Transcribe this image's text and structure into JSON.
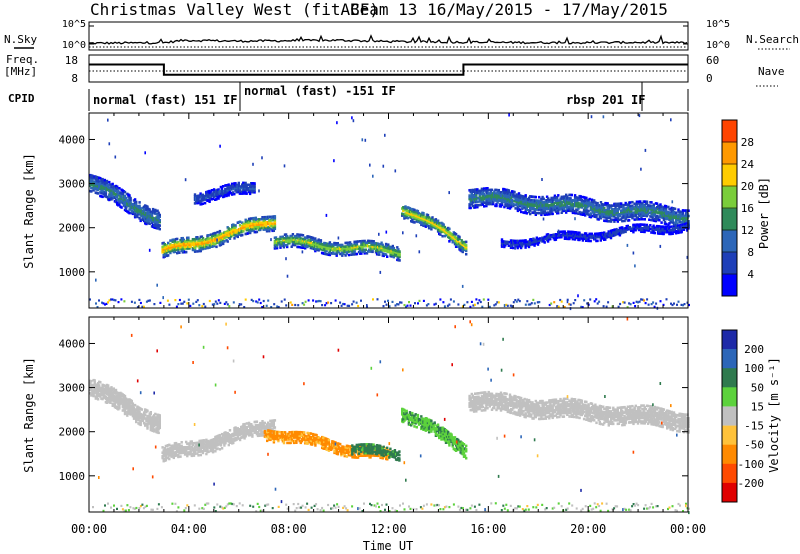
{
  "title": {
    "station": "Christmas Valley West (fitACF)",
    "beam": "Beam 13 16/May/2015 - 17/May/2015"
  },
  "labels": {
    "nsky": "N.Sky",
    "nsearch": "N.Search",
    "freq_line1": "Freq.",
    "freq_line2": "[MHz]",
    "nave": "Nave",
    "cpid": "CPID",
    "xlabel": "Time UT",
    "ylabel": "Slant Range [km]",
    "power_label": "Power [dB]",
    "velocity_label": "Velocity [m s⁻¹]"
  },
  "noise_axis": {
    "left_ticks": [
      "10^5",
      "10^0"
    ],
    "right_ticks": [
      "10^5",
      "10^0"
    ]
  },
  "freq_axis": {
    "left_ticks": [
      "18",
      "8"
    ],
    "right_ticks": [
      "60",
      "0"
    ]
  },
  "cpid_modes": [
    {
      "label": "normal (fast) 151 IF",
      "start_h": 0,
      "end_h": 6
    },
    {
      "label": "normal (fast) -151 IF",
      "start_h": 6,
      "end_h": 22
    },
    {
      "label": "rbsp 201 IF",
      "start_h": 22,
      "end_h": 24
    }
  ],
  "chart_data": [
    {
      "type": "line",
      "title": "N.Sky / N.Search",
      "x_range_h": [
        0,
        24
      ],
      "series": [
        {
          "name": "N.Sky",
          "description": "noise level near 10^0 with short spikes",
          "x": [
            0,
            3,
            3.8,
            6,
            8,
            10,
            12,
            14,
            16,
            20,
            22,
            24
          ],
          "values": [
            0.9,
            1.0,
            1.6,
            1.4,
            1.5,
            1.6,
            1.3,
            1.2,
            1.1,
            1.0,
            1.1,
            1.0
          ]
        },
        {
          "name": "N.Search",
          "x": [
            0,
            24
          ],
          "values": [
            0.05,
            0.05
          ]
        }
      ]
    },
    {
      "type": "line",
      "title": "Freq. [MHz] / Nave",
      "x_range_h": [
        0,
        24
      ],
      "ylim_freq": [
        8,
        18
      ],
      "ylim_nave": [
        0,
        60
      ],
      "series": [
        {
          "name": "Freq. [MHz]",
          "x": [
            0,
            3,
            3,
            15,
            15,
            24
          ],
          "values": [
            14.5,
            14.5,
            10.7,
            10.7,
            14.5,
            14.5
          ]
        },
        {
          "name": "Nave",
          "x": [
            0,
            24
          ],
          "values": [
            20,
            20
          ]
        }
      ]
    },
    {
      "type": "heatmap",
      "title": "Power [dB]",
      "xlabel": "Time UT",
      "ylabel": "Slant Range [km]",
      "x_ticks": [
        "00:00",
        "04:00",
        "08:00",
        "12:00",
        "16:00",
        "20:00",
        "00:00"
      ],
      "x_range_h": [
        0,
        24
      ],
      "ylim": [
        180,
        4600
      ],
      "y_ticks": [
        1000,
        2000,
        3000,
        4000
      ],
      "colorbar_ticks": [
        4,
        8,
        12,
        16,
        20,
        24,
        28
      ],
      "colorbar_range": [
        0,
        32
      ],
      "scatter_bands": [
        {
          "t0": 0,
          "t1": 2.8,
          "r0": 3000,
          "r1": 2200,
          "width": 420,
          "peak": 14
        },
        {
          "t0": 2.9,
          "t1": 7.4,
          "r0": 1450,
          "r1": 2150,
          "width": 340,
          "peak": 26
        },
        {
          "t0": 4.2,
          "t1": 6.6,
          "r0": 2700,
          "r1": 2900,
          "width": 260,
          "peak": 8
        },
        {
          "t0": 7.4,
          "t1": 12.4,
          "r0": 1700,
          "r1": 1450,
          "width": 300,
          "peak": 20
        },
        {
          "t0": 12.5,
          "t1": 15.1,
          "r0": 2450,
          "r1": 1600,
          "width": 320,
          "peak": 22
        },
        {
          "t0": 15.2,
          "t1": 24,
          "r0": 2700,
          "r1": 2250,
          "width": 420,
          "peak": 14
        },
        {
          "t0": 16.5,
          "t1": 24,
          "r0": 1650,
          "r1": 2050,
          "width": 180,
          "peak": 6
        }
      ]
    },
    {
      "type": "heatmap",
      "title": "Velocity [m s-1]",
      "xlabel": "Time UT",
      "ylabel": "Slant Range [km]",
      "x_ticks": [
        "00:00",
        "04:00",
        "08:00",
        "12:00",
        "16:00",
        "20:00",
        "00:00"
      ],
      "x_range_h": [
        0,
        24
      ],
      "ylim": [
        180,
        4600
      ],
      "y_ticks": [
        1000,
        2000,
        3000,
        4000
      ],
      "colorbar_ticks": [
        "200",
        "100",
        "50",
        "15",
        "-15",
        "-50",
        "-100",
        "-200"
      ],
      "colorbar_colors": [
        "#1e2aa8",
        "#2c66b8",
        "#2f7a4e",
        "#5cd23c",
        "#c0c0c0",
        "#ffc23a",
        "#ff8a00",
        "#ff4a00",
        "#e00000"
      ],
      "scatter_bands": [
        {
          "t0": 0,
          "t1": 2.8,
          "r0": 3000,
          "r1": 2200,
          "width": 420,
          "velocity": 0
        },
        {
          "t0": 2.9,
          "t1": 7.4,
          "r0": 1450,
          "r1": 2150,
          "width": 340,
          "velocity": 0
        },
        {
          "t0": 7.0,
          "t1": 12.0,
          "r0": 2000,
          "r1": 1450,
          "width": 280,
          "velocity": -60
        },
        {
          "t0": 10.5,
          "t1": 12.4,
          "r0": 1600,
          "r1": 1500,
          "width": 220,
          "velocity": 70
        },
        {
          "t0": 12.5,
          "t1": 15.1,
          "r0": 2450,
          "r1": 1600,
          "width": 320,
          "velocity": 40
        },
        {
          "t0": 15.2,
          "t1": 24,
          "r0": 2700,
          "r1": 2250,
          "width": 420,
          "velocity": 0
        }
      ]
    }
  ]
}
